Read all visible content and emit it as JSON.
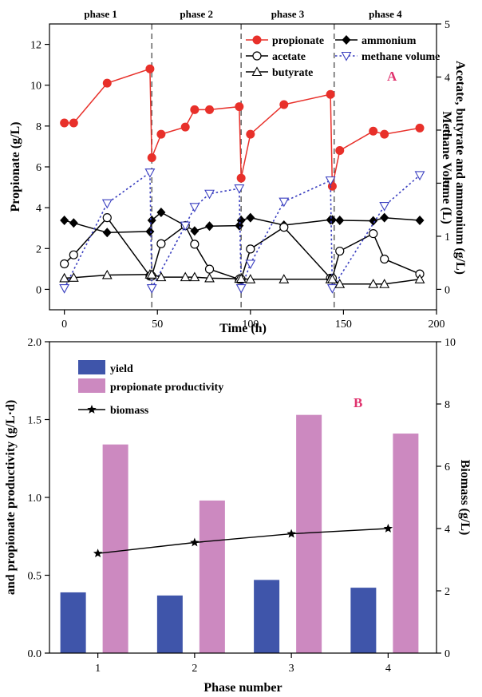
{
  "chart_data": [
    {
      "type": "line",
      "panel_label": "A",
      "panel_label_color": "#e0336e",
      "xlabel": "Time (h)",
      "ylabel_left": "Propionate (g/L)",
      "ylabel_right_line1": "Acetate, butyrate and ammonium (g/L)",
      "ylabel_right_line2": "Methane Volume (L)",
      "xlim": [
        -8,
        200
      ],
      "ylim_left": [
        -1,
        13
      ],
      "ylim_right": [
        -0.385,
        5
      ],
      "x_ticks": [
        0,
        50,
        100,
        150,
        200
      ],
      "y_left_ticks": [
        0,
        2,
        4,
        6,
        8,
        10,
        12
      ],
      "y_right_ticks": [
        0,
        1,
        2,
        3,
        4,
        5
      ],
      "phase_boundaries": [
        47,
        95,
        145
      ],
      "phases": [
        {
          "label": "phase 1",
          "x_center": 19.5
        },
        {
          "label": "phase 2",
          "x_center": 71
        },
        {
          "label": "phase 3",
          "x_center": 120
        },
        {
          "label": "phase 4",
          "x_center": 172.5
        }
      ],
      "legend_position": "top-right",
      "series": [
        {
          "name": "propionate",
          "axis": "left",
          "color": "#e8302a",
          "marker": "filled-circle",
          "line": "solid",
          "x": [
            0,
            5,
            23,
            46,
            47,
            52,
            65,
            70,
            78,
            94,
            95,
            100,
            118,
            143,
            144,
            148,
            166,
            172,
            191
          ],
          "y": [
            8.15,
            8.15,
            10.1,
            10.8,
            6.45,
            7.6,
            7.95,
            8.8,
            8.8,
            8.95,
            5.45,
            7.6,
            9.05,
            9.55,
            5.05,
            6.8,
            7.75,
            7.6,
            7.9
          ]
        },
        {
          "name": "ammonium",
          "axis": "right",
          "color": "#000000",
          "marker": "filled-diamond",
          "line": "solid",
          "x": [
            0,
            5,
            23,
            46,
            47,
            52,
            65,
            70,
            78,
            94,
            95,
            100,
            118,
            143,
            144,
            148,
            166,
            172,
            191
          ],
          "y": [
            1.3,
            1.25,
            1.07,
            1.09,
            1.3,
            1.45,
            1.2,
            1.1,
            1.19,
            1.2,
            1.3,
            1.35,
            1.21,
            1.31,
            1.31,
            1.3,
            1.29,
            1.35,
            1.3
          ]
        },
        {
          "name": "acetate",
          "axis": "right",
          "color": "#000000",
          "marker": "open-circle",
          "line": "solid",
          "x": [
            0,
            5,
            23,
            46,
            47,
            52,
            65,
            70,
            78,
            94,
            95,
            100,
            118,
            143,
            144,
            148,
            166,
            172,
            191
          ],
          "y": [
            0.48,
            0.65,
            1.35,
            0.25,
            0.25,
            0.86,
            1.2,
            0.85,
            0.38,
            0.19,
            0.19,
            0.76,
            1.17,
            0.21,
            0.21,
            0.72,
            1.05,
            0.57,
            0.29
          ]
        },
        {
          "name": "methane volume",
          "axis": "right",
          "color": "#3a3fc0",
          "marker": "open-down-triangle",
          "line": "dotted",
          "x": [
            0,
            23,
            46,
            47,
            65,
            70,
            78,
            94,
            95,
            100,
            118,
            143,
            144,
            172,
            191
          ],
          "y": [
            0.02,
            1.62,
            2.2,
            0.02,
            1.2,
            1.55,
            1.8,
            1.9,
            0.02,
            0.48,
            1.65,
            2.05,
            0.02,
            1.57,
            2.15
          ]
        },
        {
          "name": "butyrate",
          "axis": "right",
          "color": "#000000",
          "marker": "open-up-triangle",
          "line": "solid",
          "x": [
            0,
            5,
            23,
            46,
            47,
            52,
            65,
            70,
            78,
            94,
            95,
            100,
            118,
            143,
            144,
            148,
            166,
            172,
            191
          ],
          "y": [
            0.21,
            0.22,
            0.27,
            0.28,
            0.28,
            0.23,
            0.23,
            0.23,
            0.21,
            0.2,
            0.2,
            0.19,
            0.19,
            0.19,
            0.19,
            0.1,
            0.1,
            0.1,
            0.19
          ]
        }
      ]
    },
    {
      "type": "bar",
      "panel_label": "B",
      "panel_label_color": "#e0336e",
      "xlabel": "Phase number",
      "ylabel_left": "and propionate productivity (g/L·d)",
      "ylabel_right": "Biomass (g/L)",
      "categories": [
        "1",
        "2",
        "3",
        "4"
      ],
      "xlim": [
        0.5,
        4.5
      ],
      "ylim_left": [
        0,
        2.0
      ],
      "ylim_right": [
        0,
        10
      ],
      "y_left_ticks": [
        "0.0",
        "0.5",
        "1.0",
        "1.5",
        "2.0"
      ],
      "y_right_ticks": [
        "0",
        "2",
        "4",
        "6",
        "8",
        "10"
      ],
      "legend_position": "top-left",
      "series": [
        {
          "name": "yield",
          "type": "bar",
          "axis": "left",
          "color": "#3f55aa",
          "values": [
            0.39,
            0.37,
            0.47,
            0.42
          ]
        },
        {
          "name": "propionate productivity",
          "type": "bar",
          "axis": "left",
          "color": "#cc89c0",
          "values": [
            1.34,
            0.98,
            1.53,
            1.41
          ]
        },
        {
          "name": "biomass",
          "type": "line",
          "axis": "right",
          "color": "#000000",
          "marker": "star",
          "values": [
            3.2,
            3.55,
            3.83,
            4.0
          ]
        }
      ]
    }
  ]
}
